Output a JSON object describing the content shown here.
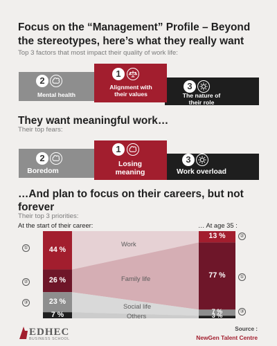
{
  "title": "Focus on the “Management” Profile – Beyond the stereotypes, here’s what they really want",
  "section1": {
    "subtitle": "Top 3 factors that most impact their quality of work life:",
    "items": [
      {
        "rank": "2",
        "label": "Mental health",
        "icon": "brain-icon"
      },
      {
        "rank": "1",
        "label": "Alignment with their values",
        "icon": "balance-scale-icon"
      },
      {
        "rank": "3",
        "label": "The nature of their role",
        "icon": "gear-icon"
      }
    ]
  },
  "section2": {
    "heading": "They want meaningful work…",
    "subtitle": "Their top fears:",
    "items": [
      {
        "rank": "2",
        "label": "Boredom",
        "icon": "brain-icon"
      },
      {
        "rank": "1",
        "label": "Losing meaning",
        "icon": "brain-icon"
      },
      {
        "rank": "3",
        "label": "Work overload",
        "icon": "gear-icon"
      }
    ]
  },
  "section3": {
    "heading": "…And plan to focus on their careers, but not forever",
    "subtitle": "Their top 3 priorities:",
    "left_label": "At the start of their career:",
    "right_label": "… At age 35 :",
    "left_ranks": [
      "①",
      "②",
      "③"
    ],
    "right_ranks": [
      "②",
      "①",
      "③"
    ]
  },
  "chart_data": {
    "type": "area",
    "categories": [
      "At the start of their career",
      "At age 35"
    ],
    "series": [
      {
        "name": "Work",
        "values": [
          44,
          13
        ]
      },
      {
        "name": "Family life",
        "values": [
          26,
          77
        ]
      },
      {
        "name": "Social life",
        "values": [
          23,
          7
        ]
      },
      {
        "name": "Others",
        "values": [
          7,
          3
        ]
      }
    ],
    "value_labels": {
      "start": [
        "44 %",
        "26 %",
        "23 %",
        "7 %"
      ],
      "age35": [
        "13 %",
        "77 %",
        "7 %",
        "3 %"
      ]
    }
  },
  "footer": {
    "logo": "EDHEC",
    "logo_sub": "BUSINESS SCHOOL",
    "source_label": "Source :",
    "source_value": "NewGen Talent Centre"
  },
  "colors": {
    "accent": "#a21e2e",
    "work": "#a21e2e",
    "family": "#6e1629",
    "social": "#8e8e8e",
    "others": "#1f1f1f"
  }
}
